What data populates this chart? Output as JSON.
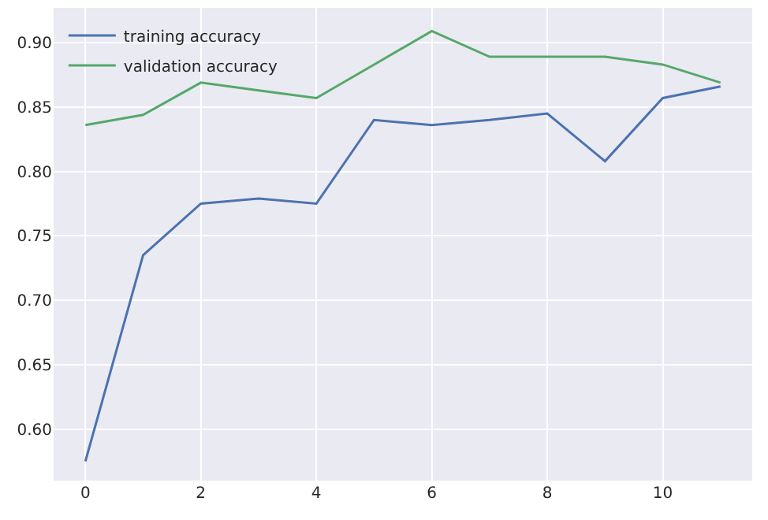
{
  "chart_data": {
    "type": "line",
    "x": [
      0,
      1,
      2,
      3,
      4,
      5,
      6,
      7,
      8,
      9,
      10,
      11
    ],
    "series": [
      {
        "name": "training accuracy",
        "color": "#4c72b0",
        "values": [
          0.575,
          0.735,
          0.775,
          0.779,
          0.775,
          0.84,
          0.836,
          0.84,
          0.845,
          0.808,
          0.857,
          0.866
        ]
      },
      {
        "name": "validation accuracy",
        "color": "#55a868",
        "values": [
          0.836,
          0.844,
          0.869,
          0.863,
          0.857,
          0.883,
          0.909,
          0.889,
          0.889,
          0.889,
          0.883,
          0.869
        ]
      }
    ],
    "xlim": [
      -0.55,
      11.55
    ],
    "xticks": [
      0,
      2,
      4,
      6,
      8,
      10
    ],
    "ylim": [
      0.56,
      0.927
    ],
    "yticks": [
      {
        "value": 0.6,
        "label": "0.60"
      },
      {
        "value": 0.65,
        "label": "0.65"
      },
      {
        "value": 0.7,
        "label": "0.70"
      },
      {
        "value": 0.75,
        "label": "0.75"
      },
      {
        "value": 0.8,
        "label": "0.80"
      },
      {
        "value": 0.85,
        "label": "0.85"
      },
      {
        "value": 0.9,
        "label": "0.90"
      }
    ],
    "grid": true,
    "legend": "top left",
    "marker": "none",
    "line_style": "solid"
  }
}
